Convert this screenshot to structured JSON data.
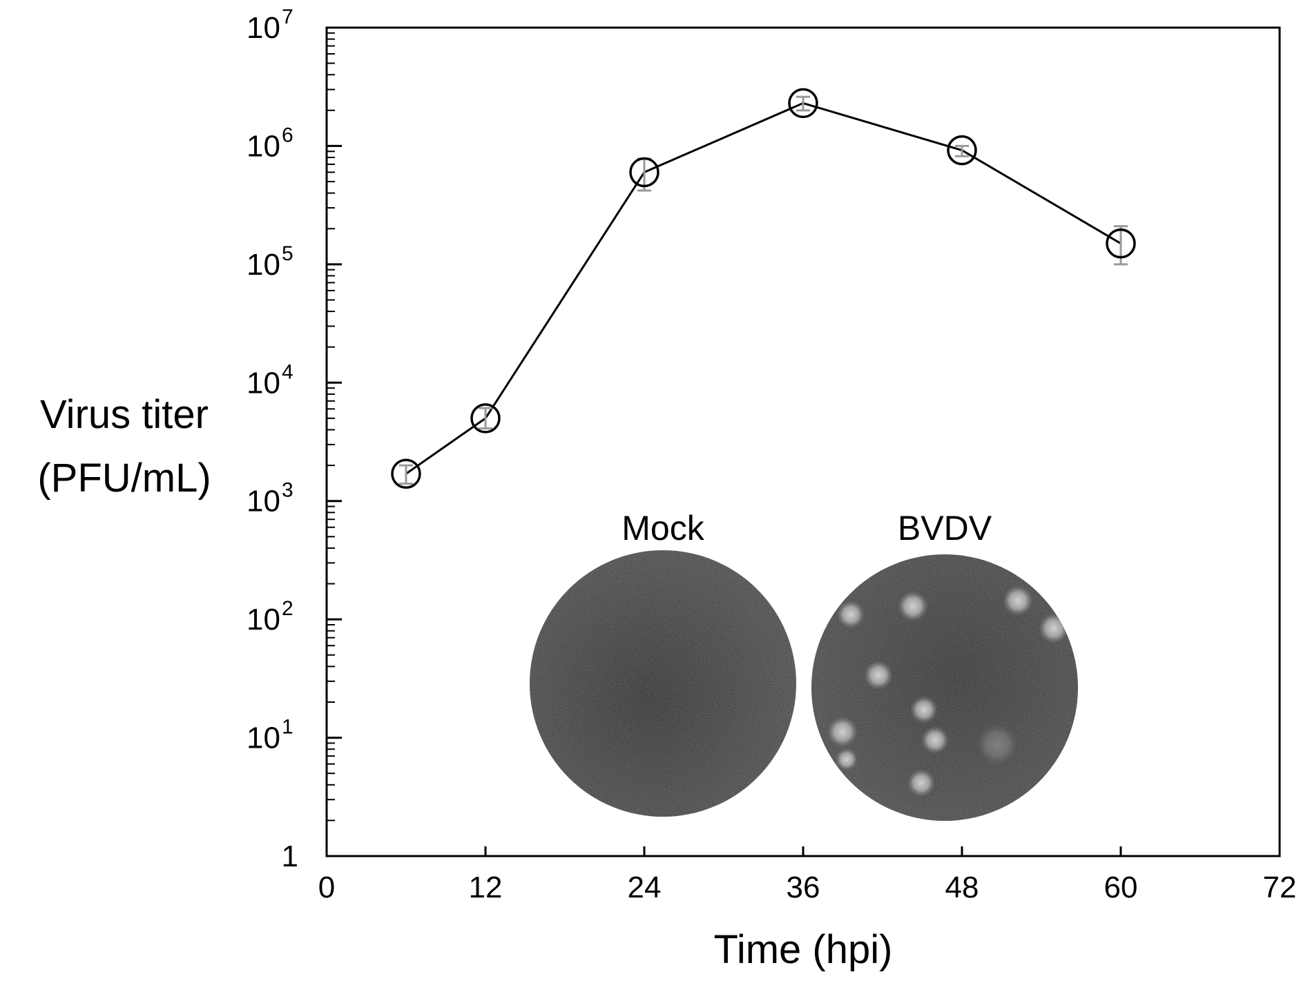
{
  "chart_data": {
    "type": "line",
    "xlabel": "Time (hpi)",
    "ylabel_lines": [
      "Virus titer",
      "(PFU/mL)"
    ],
    "x_ticks": [
      "0",
      "12",
      "24",
      "36",
      "48",
      "60",
      "72"
    ],
    "xlim": [
      0,
      72
    ],
    "y_scale": "log",
    "ylim": [
      1,
      10000000
    ],
    "y_ticks": [
      {
        "base": "1",
        "exp": ""
      },
      {
        "base": "10",
        "exp": "1"
      },
      {
        "base": "10",
        "exp": "2"
      },
      {
        "base": "10",
        "exp": "3"
      },
      {
        "base": "10",
        "exp": "4"
      },
      {
        "base": "10",
        "exp": "5"
      },
      {
        "base": "10",
        "exp": "6"
      },
      {
        "base": "10",
        "exp": "7"
      }
    ],
    "series": [
      {
        "points": [
          {
            "x": 6,
            "y": 1700,
            "err_low": 1400,
            "err_high": 2000
          },
          {
            "x": 12,
            "y": 5000,
            "err_low": 4100,
            "err_high": 6100
          },
          {
            "x": 24,
            "y": 600000,
            "err_low": 420000,
            "err_high": 780000
          },
          {
            "x": 36,
            "y": 2300000,
            "err_low": 2000000,
            "err_high": 2600000
          },
          {
            "x": 48,
            "y": 920000,
            "err_low": 820000,
            "err_high": 1000000
          },
          {
            "x": 60,
            "y": 150000,
            "err_low": 100000,
            "err_high": 210000
          }
        ],
        "marker": "open-circle",
        "line_color": "#000000",
        "errorbar_color": "#999999"
      }
    ],
    "inset_labels": [
      "Mock",
      "BVDV"
    ],
    "grid": false
  }
}
